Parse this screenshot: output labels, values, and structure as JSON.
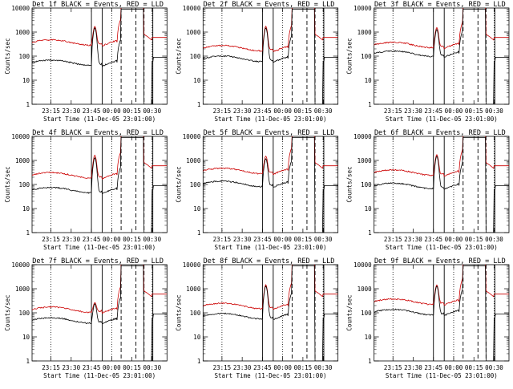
{
  "figure": {
    "common": {
      "title_suffix": "BLACK = Events, RED = LLD",
      "xlabel": "Start Time (11-Dec-05 23:01:00)",
      "ylabel": "Counts/sec",
      "x_ticks": [
        "23:15",
        "23:30",
        "23:45",
        "00:00",
        "00:15",
        "00:30"
      ],
      "y_ticks": [
        "1",
        "10",
        "100",
        "1000",
        "10000"
      ],
      "colors": {
        "events": "#000000",
        "lld": "#cc0000",
        "axes": "#000000"
      }
    }
  },
  "chart_data": [
    {
      "type": "line",
      "title": "Det 1f BLACK = Events, RED = LLD",
      "xlabel": "Start Time (11-Dec-05 23:01:00)",
      "ylabel": "Counts/sec",
      "ylim": [
        1,
        10000
      ],
      "yscale": "log",
      "x_ticks": [
        "23:15",
        "23:30",
        "23:45",
        "00:00",
        "00:15",
        "00:30"
      ],
      "series": [
        {
          "name": "BLACK = Events",
          "baseline": 55,
          "peak": 1500
        },
        {
          "name": "RED = LLD",
          "baseline": 380,
          "peak": 1800
        }
      ]
    },
    {
      "type": "line",
      "title": "Det 2f BLACK = Events, RED = LLD",
      "xlabel": "Start Time (11-Dec-05 23:01:00)",
      "ylabel": "Counts/sec",
      "ylim": [
        1,
        10000
      ],
      "yscale": "log",
      "x_ticks": [
        "23:15",
        "23:30",
        "23:45",
        "00:00",
        "00:15",
        "00:30"
      ],
      "series": [
        {
          "name": "BLACK = Events",
          "baseline": 80,
          "peak": 1500
        },
        {
          "name": "RED = LLD",
          "baseline": 220,
          "peak": 1800
        }
      ]
    },
    {
      "type": "line",
      "title": "Det 3f BLACK = Events, RED = LLD",
      "xlabel": "Start Time (11-Dec-05 23:01:00)",
      "ylabel": "Counts/sec",
      "ylim": [
        1,
        10000
      ],
      "yscale": "log",
      "x_ticks": [
        "23:15",
        "23:30",
        "23:45",
        "00:00",
        "00:15",
        "00:30"
      ],
      "series": [
        {
          "name": "BLACK = Events",
          "baseline": 130,
          "peak": 1300
        },
        {
          "name": "RED = LLD",
          "baseline": 300,
          "peak": 1600
        }
      ]
    },
    {
      "type": "line",
      "title": "Det 4f BLACK = Events, RED = LLD",
      "xlabel": "Start Time (11-Dec-05 23:01:00)",
      "ylabel": "Counts/sec",
      "ylim": [
        1,
        10000
      ],
      "yscale": "log",
      "x_ticks": [
        "23:15",
        "23:30",
        "23:45",
        "00:00",
        "00:15",
        "00:30"
      ],
      "series": [
        {
          "name": "BLACK = Events",
          "baseline": 60,
          "peak": 1300
        },
        {
          "name": "RED = LLD",
          "baseline": 250,
          "peak": 1700
        }
      ]
    },
    {
      "type": "line",
      "title": "Det 5f BLACK = Events, RED = LLD",
      "xlabel": "Start Time (11-Dec-05 23:01:00)",
      "ylabel": "Counts/sec",
      "ylim": [
        1,
        10000
      ],
      "yscale": "log",
      "x_ticks": [
        "23:15",
        "23:30",
        "23:45",
        "00:00",
        "00:15",
        "00:30"
      ],
      "series": [
        {
          "name": "BLACK = Events",
          "baseline": 110,
          "peak": 1200
        },
        {
          "name": "RED = LLD",
          "baseline": 380,
          "peak": 1600
        }
      ]
    },
    {
      "type": "line",
      "title": "Det 6f BLACK = Events, RED = LLD",
      "xlabel": "Start Time (11-Dec-05 23:01:00)",
      "ylabel": "Counts/sec",
      "ylim": [
        1,
        10000
      ],
      "yscale": "log",
      "x_ticks": [
        "23:15",
        "23:30",
        "23:45",
        "00:00",
        "00:15",
        "00:30"
      ],
      "series": [
        {
          "name": "BLACK = Events",
          "baseline": 90,
          "peak": 1500
        },
        {
          "name": "RED = LLD",
          "baseline": 320,
          "peak": 1800
        }
      ]
    },
    {
      "type": "line",
      "title": "Det 7f BLACK = Events, RED = LLD",
      "xlabel": "Start Time (11-Dec-05 23:01:00)",
      "ylabel": "Counts/sec",
      "ylim": [
        1,
        10000
      ],
      "yscale": "log",
      "x_ticks": [
        "23:15",
        "23:30",
        "23:45",
        "00:00",
        "00:15",
        "00:30"
      ],
      "series": [
        {
          "name": "BLACK = Events",
          "baseline": 50,
          "peak": 250
        },
        {
          "name": "RED = LLD",
          "baseline": 140,
          "peak": 300
        }
      ]
    },
    {
      "type": "line",
      "title": "Det 8f BLACK = Events, RED = LLD",
      "xlabel": "Start Time (11-Dec-05 23:01:00)",
      "ylabel": "Counts/sec",
      "ylim": [
        1,
        10000
      ],
      "yscale": "log",
      "x_ticks": [
        "23:15",
        "23:30",
        "23:45",
        "00:00",
        "00:15",
        "00:30"
      ],
      "series": [
        {
          "name": "BLACK = Events",
          "baseline": 75,
          "peak": 1300
        },
        {
          "name": "RED = LLD",
          "baseline": 200,
          "peak": 1500
        }
      ]
    },
    {
      "type": "line",
      "title": "Det 9f BLACK = Events, RED = LLD",
      "xlabel": "Start Time (11-Dec-05 23:01:00)",
      "ylabel": "Counts/sec",
      "ylim": [
        1,
        10000
      ],
      "yscale": "log",
      "x_ticks": [
        "23:15",
        "23:30",
        "23:45",
        "00:00",
        "00:15",
        "00:30"
      ],
      "series": [
        {
          "name": "BLACK = Events",
          "baseline": 110,
          "peak": 1300
        },
        {
          "name": "RED = LLD",
          "baseline": 300,
          "peak": 1500
        }
      ]
    }
  ]
}
